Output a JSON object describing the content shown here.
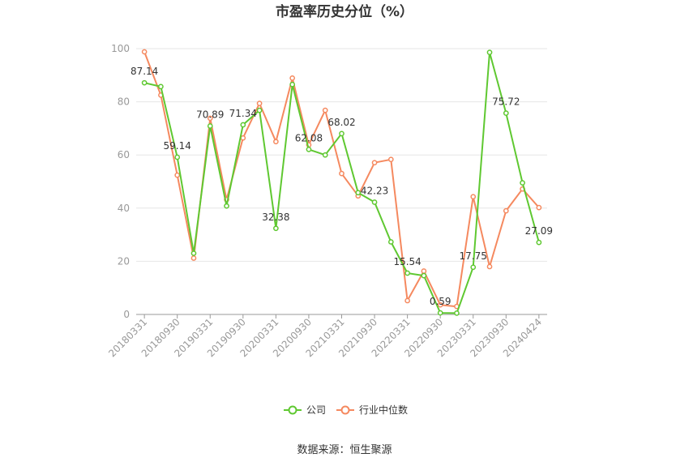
{
  "chart_data": {
    "type": "line",
    "title": "市盈率历史分位（%）",
    "xlabel": "",
    "ylabel": "",
    "ylim": [
      0,
      100
    ],
    "y_ticks": [
      "0",
      "20",
      "40",
      "60",
      "80",
      "100"
    ],
    "x_tick_labels": [
      "20180331",
      "20180930",
      "20190331",
      "20190930",
      "20200331",
      "20200930",
      "20210331",
      "20210930",
      "20220331",
      "20220930",
      "20230331",
      "20230930",
      "20240424"
    ],
    "x": [
      "20180331",
      "20180630",
      "20180930",
      "20181231",
      "20190331",
      "20190630",
      "20190930",
      "20191231",
      "20200331",
      "20200630",
      "20200930",
      "20201231",
      "20210331",
      "20210630",
      "20210930",
      "20211231",
      "20220331",
      "20220630",
      "20220930",
      "20221231",
      "20230331",
      "20230630",
      "20230930",
      "20231231",
      "20240424"
    ],
    "series": [
      {
        "name": "公司",
        "color": "#5fc831",
        "values": [
          87.14,
          85.7,
          59.14,
          23.0,
          70.89,
          40.8,
          71.34,
          76.8,
          32.38,
          86.5,
          62.08,
          60.0,
          68.02,
          45.8,
          42.23,
          27.3,
          15.54,
          14.6,
          0.59,
          0.5,
          17.75,
          98.6,
          75.72,
          49.5,
          27.09
        ],
        "labels": [
          "87.14",
          "",
          "59.14",
          "",
          "70.89",
          "",
          "71.34",
          "",
          "32.38",
          "",
          "62.08",
          "",
          "68.02",
          "",
          "42.23",
          "",
          "15.54",
          "",
          "0.59",
          "",
          "17.75",
          "",
          "75.72",
          "",
          "27.09"
        ]
      },
      {
        "name": "行业中位数",
        "color": "#f5895f",
        "values": [
          98.8,
          82.5,
          52.4,
          21.2,
          73.8,
          43.2,
          66.4,
          79.4,
          65.0,
          88.9,
          63.8,
          76.8,
          53.0,
          44.6,
          57.1,
          58.3,
          5.2,
          16.3,
          3.6,
          3.0,
          44.3,
          18.0,
          39.0,
          47.2,
          40.2
        ]
      }
    ],
    "legend_position": "bottom",
    "grid": true
  },
  "source_text": "数据来源：恒生聚源"
}
